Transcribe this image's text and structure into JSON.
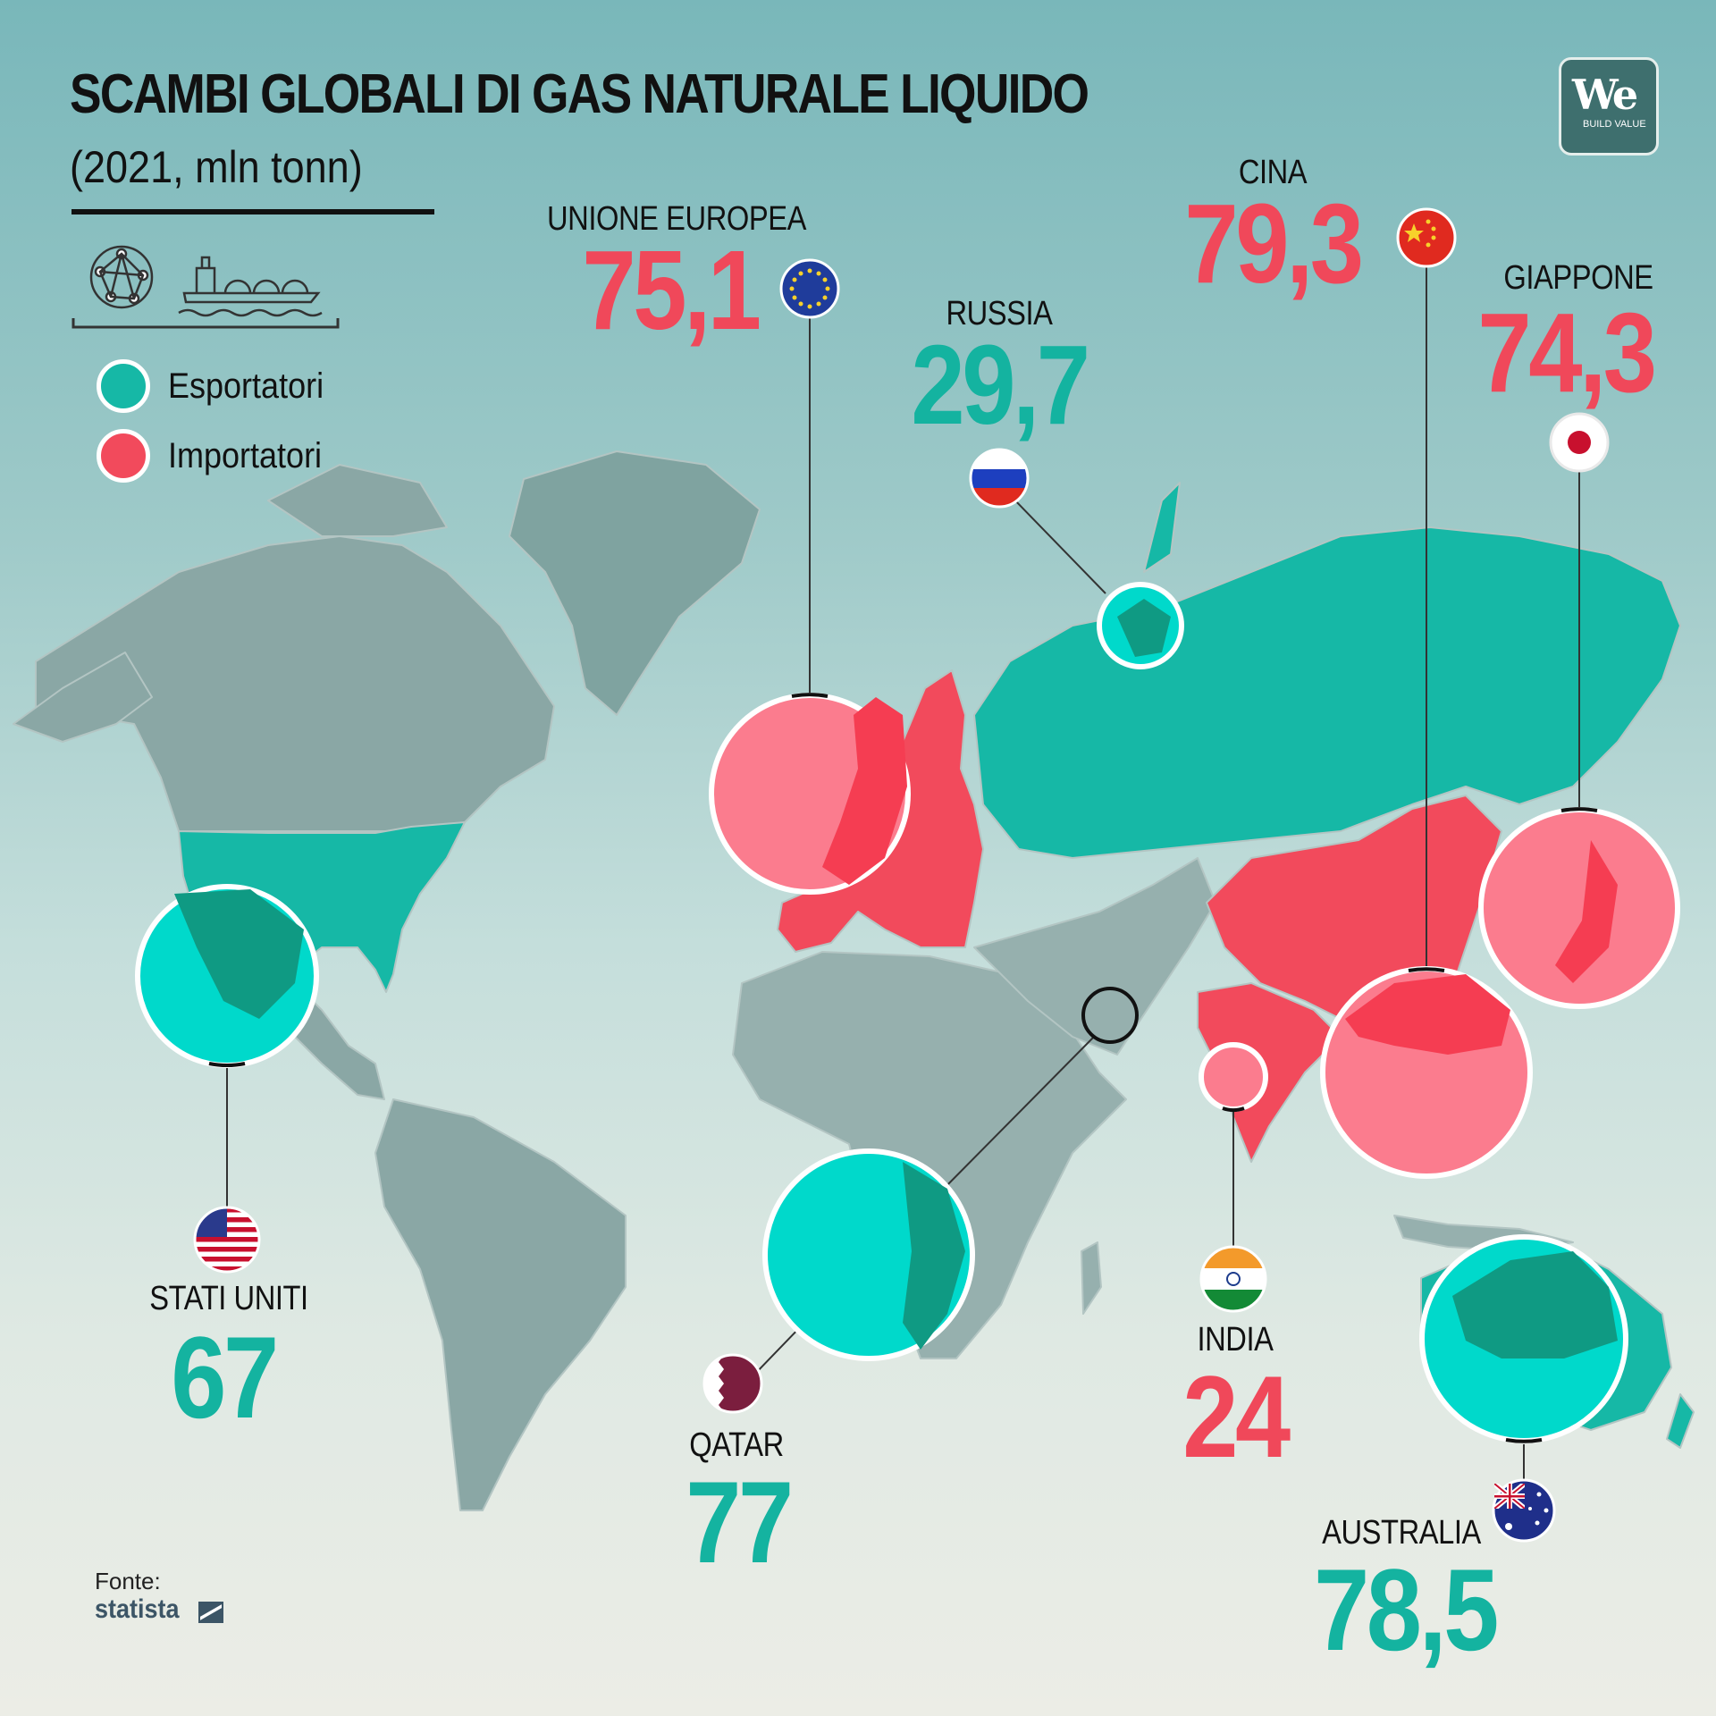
{
  "title": "SCAMBI GLOBALI DI GAS NATURALE LIQUIDO",
  "subtitle": "(2021, mln tonn)",
  "icons": [
    "globe-network-icon",
    "lng-tanker-ship-icon"
  ],
  "legend": [
    {
      "label": "Esportatori",
      "color": "#16b8a6"
    },
    {
      "label": "Importatori",
      "color": "#f24a5c"
    }
  ],
  "logo": {
    "mark": "We",
    "tagline": "BUILD VALUE"
  },
  "colors": {
    "exporter": "#16b8a6",
    "exporter_text": "#14b3a0",
    "importer": "#f24a5c",
    "importer_text": "#f0485a",
    "land": "#8ea7a5",
    "zoom_exporter": "#00d9cb",
    "zoom_importer": "#fb7c8e"
  },
  "countries": [
    {
      "name": "UNIONE EUROPEA",
      "value": "75,1",
      "role": "importer",
      "flag": "eu-flag-icon"
    },
    {
      "name": "RUSSIA",
      "value": "29,7",
      "role": "exporter",
      "flag": "russia-flag-icon"
    },
    {
      "name": "CINA",
      "value": "79,3",
      "role": "importer",
      "flag": "china-flag-icon"
    },
    {
      "name": "GIAPPONE",
      "value": "74,3",
      "role": "importer",
      "flag": "japan-flag-icon"
    },
    {
      "name": "STATI UNITI",
      "value": "67",
      "role": "exporter",
      "flag": "usa-flag-icon"
    },
    {
      "name": "QATAR",
      "value": "77",
      "role": "exporter",
      "flag": "qatar-flag-icon"
    },
    {
      "name": "INDIA",
      "value": "24",
      "role": "importer",
      "flag": "india-flag-icon"
    },
    {
      "name": "AUSTRALIA",
      "value": "78,5",
      "role": "exporter",
      "flag": "australia-flag-icon"
    }
  ],
  "source": {
    "label": "Fonte:",
    "brand": "statista"
  }
}
